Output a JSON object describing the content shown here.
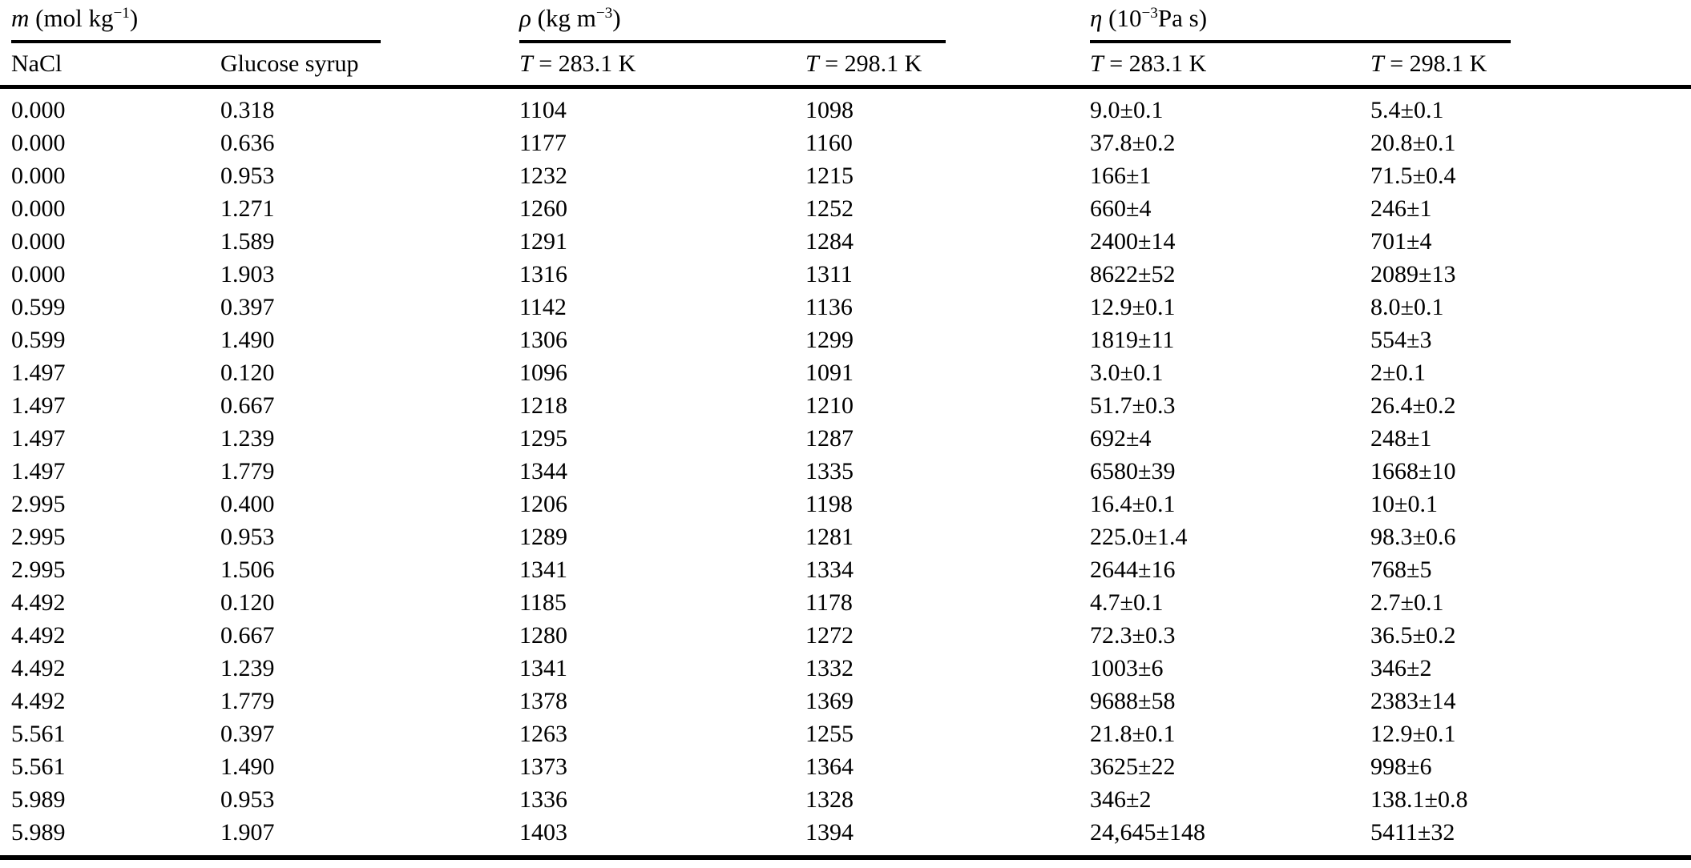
{
  "page": {
    "background": "#ffffff",
    "text_color": "#000000",
    "kind": "scientific-paper-table"
  },
  "table": {
    "column_groups": [
      {
        "symbol": "m",
        "unit_pre": " (mol kg",
        "unit_sup": "−1",
        "unit_post": ")"
      },
      {
        "symbol": "ρ",
        "unit_pre": " (kg m",
        "unit_sup": "−3",
        "unit_post": ")"
      },
      {
        "symbol": "η",
        "unit_pre": " (10",
        "unit_sup": "−3",
        "unit_post": "Pa s)"
      }
    ],
    "sub_headers": [
      {
        "italic": "",
        "text": "NaCl"
      },
      {
        "italic": "",
        "text": "Glucose syrup"
      },
      {
        "italic": "T",
        "text": " = 283.1 K"
      },
      {
        "italic": "T",
        "text": " = 298.1 K"
      },
      {
        "italic": "T",
        "text": " = 283.1 K"
      },
      {
        "italic": "T",
        "text": " = 298.1 K"
      }
    ],
    "rows": [
      [
        "0.000",
        "0.318",
        "1104",
        "1098",
        "9.0±0.1",
        "5.4±0.1"
      ],
      [
        "0.000",
        "0.636",
        "1177",
        "1160",
        "37.8±0.2",
        "20.8±0.1"
      ],
      [
        "0.000",
        "0.953",
        "1232",
        "1215",
        "166±1",
        "71.5±0.4"
      ],
      [
        "0.000",
        "1.271",
        "1260",
        "1252",
        "660±4",
        "246±1"
      ],
      [
        "0.000",
        "1.589",
        "1291",
        "1284",
        "2400±14",
        "701±4"
      ],
      [
        "0.000",
        "1.903",
        "1316",
        "1311",
        "8622±52",
        "2089±13"
      ],
      [
        "0.599",
        "0.397",
        "1142",
        "1136",
        "12.9±0.1",
        "8.0±0.1"
      ],
      [
        "0.599",
        "1.490",
        "1306",
        "1299",
        "1819±11",
        "554±3"
      ],
      [
        "1.497",
        "0.120",
        "1096",
        "1091",
        "3.0±0.1",
        "2±0.1"
      ],
      [
        "1.497",
        "0.667",
        "1218",
        "1210",
        "51.7±0.3",
        "26.4±0.2"
      ],
      [
        "1.497",
        "1.239",
        "1295",
        "1287",
        "692±4",
        "248±1"
      ],
      [
        "1.497",
        "1.779",
        "1344",
        "1335",
        "6580±39",
        "1668±10"
      ],
      [
        "2.995",
        "0.400",
        "1206",
        "1198",
        "16.4±0.1",
        "10±0.1"
      ],
      [
        "2.995",
        "0.953",
        "1289",
        "1281",
        "225.0±1.4",
        "98.3±0.6"
      ],
      [
        "2.995",
        "1.506",
        "1341",
        "1334",
        "2644±16",
        "768±5"
      ],
      [
        "4.492",
        "0.120",
        "1185",
        "1178",
        "4.7±0.1",
        "2.7±0.1"
      ],
      [
        "4.492",
        "0.667",
        "1280",
        "1272",
        "72.3±0.3",
        "36.5±0.2"
      ],
      [
        "4.492",
        "1.239",
        "1341",
        "1332",
        "1003±6",
        "346±2"
      ],
      [
        "4.492",
        "1.779",
        "1378",
        "1369",
        "9688±58",
        "2383±14"
      ],
      [
        "5.561",
        "0.397",
        "1263",
        "1255",
        "21.8±0.1",
        "12.9±0.1"
      ],
      [
        "5.561",
        "1.490",
        "1373",
        "1364",
        "3625±22",
        "998±6"
      ],
      [
        "5.989",
        "0.953",
        "1336",
        "1328",
        "346±2",
        "138.1±0.8"
      ],
      [
        "5.989",
        "1.907",
        "1403",
        "1394",
        "24,645±148",
        "5411±32"
      ]
    ]
  }
}
